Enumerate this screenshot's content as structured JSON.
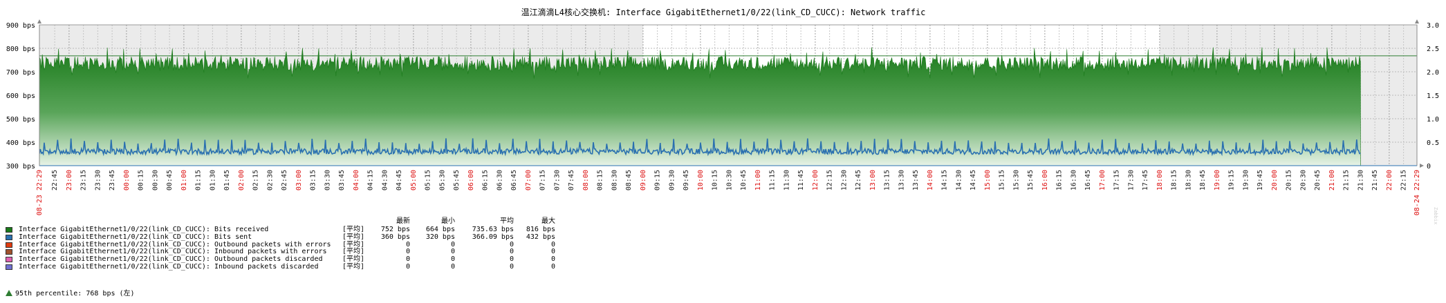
{
  "chart_data": {
    "type": "area",
    "title": "温江滴滴L4核心交换机: Interface GigabitEthernet1/0/22(link_CD_CUCC): Network traffic",
    "y_left": {
      "ticks": [
        "900 bps",
        "800 bps",
        "700 bps",
        "600 bps",
        "500 bps",
        "400 bps",
        "300 bps"
      ],
      "min": 300,
      "max": 900
    },
    "y_right": {
      "ticks": [
        "3.0",
        "2.5",
        "2.0",
        "1.5",
        "1.0",
        "0.5",
        "0"
      ],
      "min": 0,
      "max": 3
    },
    "x_start_label": "08-23 22:29",
    "x_end_label": "08-24 22:29",
    "x_ticks": [
      "22:45",
      "23:00",
      "23:15",
      "23:30",
      "23:45",
      "00:00",
      "00:15",
      "00:30",
      "00:45",
      "01:00",
      "01:15",
      "01:30",
      "01:45",
      "02:00",
      "02:15",
      "02:30",
      "02:45",
      "03:00",
      "03:15",
      "03:30",
      "03:45",
      "04:00",
      "04:15",
      "04:30",
      "04:45",
      "05:00",
      "05:15",
      "05:30",
      "05:45",
      "06:00",
      "06:15",
      "06:30",
      "06:45",
      "07:00",
      "07:15",
      "07:30",
      "07:45",
      "08:00",
      "08:15",
      "08:30",
      "08:45",
      "09:00",
      "09:15",
      "09:30",
      "09:45",
      "10:00",
      "10:15",
      "10:30",
      "10:45",
      "11:00",
      "11:15",
      "11:30",
      "11:45",
      "12:00",
      "12:15",
      "12:30",
      "12:45",
      "13:00",
      "13:15",
      "13:30",
      "13:45",
      "14:00",
      "14:15",
      "14:30",
      "14:45",
      "15:00",
      "15:15",
      "15:30",
      "15:45",
      "16:00",
      "16:15",
      "16:30",
      "16:45",
      "17:00",
      "17:15",
      "17:30",
      "17:45",
      "18:00",
      "18:15",
      "18:30",
      "18:45",
      "19:00",
      "19:15",
      "19:30",
      "19:45",
      "20:00",
      "20:15",
      "20:30",
      "20:45",
      "21:00",
      "21:15",
      "21:30",
      "21:45",
      "22:00",
      "22:15"
    ],
    "x_range_minutes": [
      0,
      1440
    ],
    "data_end_minute": 1381,
    "percentile_95": 768,
    "shaded_regions_minutes": [
      [
        0,
        631
      ],
      [
        1171,
        1440
      ]
    ],
    "series": [
      {
        "name": "Interface GigabitEthernet1/0/22(link_CD_CUCC): Bits received",
        "color": "#1a7a1a",
        "fill": "gradient",
        "approx_mean": 735.63,
        "min": 664,
        "max": 816
      },
      {
        "name": "Interface GigabitEthernet1/0/22(link_CD_CUCC): Bits sent",
        "color": "#2a70b0",
        "approx_mean": 366.09,
        "min": 320,
        "max": 432
      }
    ]
  },
  "legend": {
    "headers": [
      "最新",
      "最小",
      "平均",
      "最大"
    ],
    "rows": [
      {
        "color": "#1a7a1a",
        "name": "Interface GigabitEthernet1/0/22(link_CD_CUCC): Bits received",
        "func": "[平均]",
        "last": "752 bps",
        "min": "664 bps",
        "avg": "735.63 bps",
        "max": "816 bps"
      },
      {
        "color": "#2a70b0",
        "name": "Interface GigabitEthernet1/0/22(link_CD_CUCC): Bits sent",
        "func": "[平均]",
        "last": "360 bps",
        "min": "320 bps",
        "avg": "366.09 bps",
        "max": "432 bps"
      },
      {
        "color": "#e03c10",
        "name": "Interface GigabitEthernet1/0/22(link_CD_CUCC): Outbound packets with errors",
        "func": "[平均]",
        "last": "0",
        "min": "0",
        "avg": "0",
        "max": "0"
      },
      {
        "color": "#a0522d",
        "name": "Interface GigabitEthernet1/0/22(link_CD_CUCC): Inbound packets with errors",
        "func": "[平均]",
        "last": "0",
        "min": "0",
        "avg": "0",
        "max": "0"
      },
      {
        "color": "#e060b0",
        "name": "Interface GigabitEthernet1/0/22(link_CD_CUCC): Outbound packets discarded",
        "func": "[平均]",
        "last": "0",
        "min": "0",
        "avg": "0",
        "max": "0"
      },
      {
        "color": "#7070d0",
        "name": "Interface GigabitEthernet1/0/22(link_CD_CUCC): Inbound packets discarded",
        "func": "[平均]",
        "last": "0",
        "min": "0",
        "avg": "0",
        "max": "0"
      }
    ],
    "percentile_text": "95th percentile: 768 bps (左)"
  }
}
